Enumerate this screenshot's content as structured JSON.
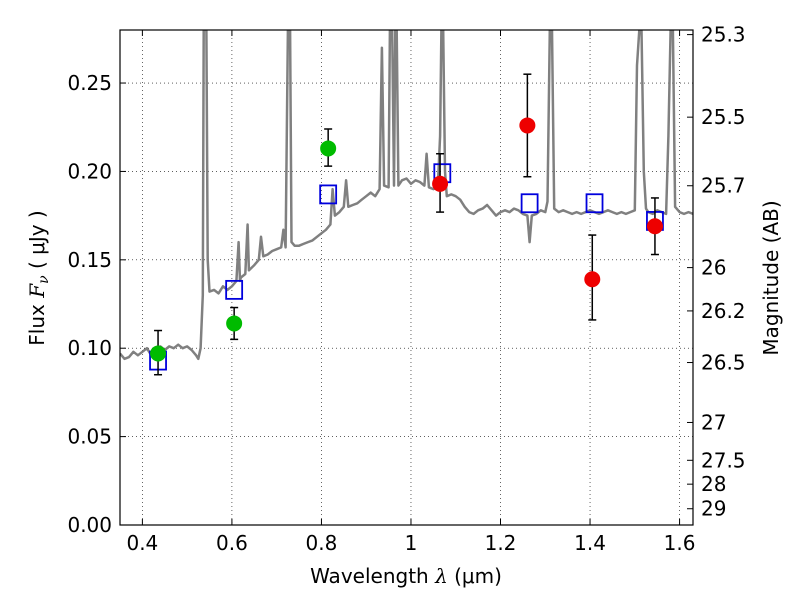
{
  "chart_data": {
    "type": "scatter",
    "xlabel_text": "Wavelength  ",
    "xlabel_symbol": "λ",
    "xlabel_unit": " (μm)",
    "ylabel_text": "Flux  ",
    "ylabel_symbol": "F",
    "ylabel_sub": "ν",
    "ylabel_unit": "  ( μJy )",
    "y2label": "Magnitude (AB)",
    "xlim": [
      0.35,
      1.63
    ],
    "ylim": [
      0.0,
      0.28
    ],
    "xticks": [
      0.4,
      0.6,
      0.8,
      1.0,
      1.2,
      1.4,
      1.6
    ],
    "xtick_labels": [
      "0.4",
      "0.6",
      "0.8",
      "1",
      "1.2",
      "1.4",
      "1.6"
    ],
    "yticks": [
      0.0,
      0.05,
      0.1,
      0.15,
      0.2,
      0.25
    ],
    "ytick_labels": [
      "0.00",
      "0.05",
      "0.10",
      "0.15",
      "0.20",
      "0.25"
    ],
    "y2ticks": [
      {
        "label": "25.3",
        "flux": 0.2774
      },
      {
        "label": "25.5",
        "flux": 0.2307
      },
      {
        "label": "25.7",
        "flux": 0.1919
      },
      {
        "label": "26",
        "flux": 0.1456
      },
      {
        "label": "26.2",
        "flux": 0.1211
      },
      {
        "label": "26.5",
        "flux": 0.0919
      },
      {
        "label": "27",
        "flux": 0.058
      },
      {
        "label": "27.5",
        "flux": 0.0366
      },
      {
        "label": "28",
        "flux": 0.0231
      },
      {
        "label": "29",
        "flux": 0.0092
      }
    ],
    "grid": true,
    "series": [
      {
        "kind": "spectrum",
        "color": "#808080",
        "points": [
          [
            0.35,
            0.097
          ],
          [
            0.36,
            0.094
          ],
          [
            0.37,
            0.095
          ],
          [
            0.38,
            0.098
          ],
          [
            0.39,
            0.096
          ],
          [
            0.4,
            0.098
          ],
          [
            0.41,
            0.1
          ],
          [
            0.42,
            0.096
          ],
          [
            0.43,
            0.099
          ],
          [
            0.44,
            0.101
          ],
          [
            0.45,
            0.099
          ],
          [
            0.46,
            0.101
          ],
          [
            0.47,
            0.1
          ],
          [
            0.48,
            0.102
          ],
          [
            0.49,
            0.1
          ],
          [
            0.5,
            0.101
          ],
          [
            0.51,
            0.099
          ],
          [
            0.52,
            0.096
          ],
          [
            0.525,
            0.094
          ],
          [
            0.53,
            0.1
          ],
          [
            0.535,
            0.13
          ],
          [
            0.537,
            0.28
          ],
          [
            0.543,
            0.28
          ],
          [
            0.546,
            0.15
          ],
          [
            0.55,
            0.132
          ],
          [
            0.56,
            0.133
          ],
          [
            0.57,
            0.131
          ],
          [
            0.58,
            0.135
          ],
          [
            0.59,
            0.133
          ],
          [
            0.6,
            0.135
          ],
          [
            0.61,
            0.138
          ],
          [
            0.615,
            0.16
          ],
          [
            0.618,
            0.138
          ],
          [
            0.62,
            0.14
          ],
          [
            0.63,
            0.142
          ],
          [
            0.635,
            0.17
          ],
          [
            0.638,
            0.144
          ],
          [
            0.65,
            0.147
          ],
          [
            0.66,
            0.15
          ],
          [
            0.665,
            0.163
          ],
          [
            0.67,
            0.152
          ],
          [
            0.68,
            0.153
          ],
          [
            0.69,
            0.155
          ],
          [
            0.7,
            0.156
          ],
          [
            0.71,
            0.157
          ],
          [
            0.715,
            0.167
          ],
          [
            0.72,
            0.157
          ],
          [
            0.725,
            0.28
          ],
          [
            0.73,
            0.28
          ],
          [
            0.733,
            0.16
          ],
          [
            0.74,
            0.158
          ],
          [
            0.75,
            0.158
          ],
          [
            0.76,
            0.159
          ],
          [
            0.77,
            0.16
          ],
          [
            0.78,
            0.161
          ],
          [
            0.79,
            0.163
          ],
          [
            0.8,
            0.165
          ],
          [
            0.81,
            0.167
          ],
          [
            0.82,
            0.17
          ],
          [
            0.825,
            0.19
          ],
          [
            0.83,
            0.175
          ],
          [
            0.84,
            0.177
          ],
          [
            0.85,
            0.18
          ],
          [
            0.855,
            0.195
          ],
          [
            0.86,
            0.18
          ],
          [
            0.87,
            0.181
          ],
          [
            0.88,
            0.182
          ],
          [
            0.89,
            0.184
          ],
          [
            0.9,
            0.186
          ],
          [
            0.91,
            0.188
          ],
          [
            0.92,
            0.186
          ],
          [
            0.93,
            0.19
          ],
          [
            0.935,
            0.27
          ],
          [
            0.94,
            0.192
          ],
          [
            0.95,
            0.191
          ],
          [
            0.953,
            0.28
          ],
          [
            0.958,
            0.28
          ],
          [
            0.962,
            0.192
          ],
          [
            0.965,
            0.28
          ],
          [
            0.968,
            0.28
          ],
          [
            0.972,
            0.192
          ],
          [
            0.98,
            0.195
          ],
          [
            0.99,
            0.196
          ],
          [
            1.0,
            0.193
          ],
          [
            1.01,
            0.195
          ],
          [
            1.02,
            0.194
          ],
          [
            1.03,
            0.192
          ],
          [
            1.035,
            0.21
          ],
          [
            1.04,
            0.191
          ],
          [
            1.05,
            0.19
          ],
          [
            1.06,
            0.191
          ],
          [
            1.065,
            0.22
          ],
          [
            1.068,
            0.28
          ],
          [
            1.072,
            0.28
          ],
          [
            1.076,
            0.2
          ],
          [
            1.08,
            0.186
          ],
          [
            1.09,
            0.187
          ],
          [
            1.1,
            0.186
          ],
          [
            1.11,
            0.184
          ],
          [
            1.12,
            0.18
          ],
          [
            1.13,
            0.177
          ],
          [
            1.14,
            0.176
          ],
          [
            1.15,
            0.178
          ],
          [
            1.16,
            0.179
          ],
          [
            1.17,
            0.181
          ],
          [
            1.18,
            0.178
          ],
          [
            1.19,
            0.175
          ],
          [
            1.2,
            0.177
          ],
          [
            1.21,
            0.178
          ],
          [
            1.22,
            0.177
          ],
          [
            1.23,
            0.179
          ],
          [
            1.24,
            0.178
          ],
          [
            1.25,
            0.176
          ],
          [
            1.26,
            0.175
          ],
          [
            1.265,
            0.16
          ],
          [
            1.27,
            0.175
          ],
          [
            1.28,
            0.176
          ],
          [
            1.29,
            0.178
          ],
          [
            1.3,
            0.177
          ],
          [
            1.305,
            0.183
          ],
          [
            1.31,
            0.28
          ],
          [
            1.315,
            0.28
          ],
          [
            1.32,
            0.179
          ],
          [
            1.33,
            0.177
          ],
          [
            1.34,
            0.178
          ],
          [
            1.35,
            0.177
          ],
          [
            1.36,
            0.176
          ],
          [
            1.37,
            0.177
          ],
          [
            1.38,
            0.176
          ],
          [
            1.39,
            0.177
          ],
          [
            1.4,
            0.178
          ],
          [
            1.41,
            0.177
          ],
          [
            1.42,
            0.176
          ],
          [
            1.43,
            0.177
          ],
          [
            1.44,
            0.178
          ],
          [
            1.45,
            0.177
          ],
          [
            1.46,
            0.176
          ],
          [
            1.47,
            0.177
          ],
          [
            1.48,
            0.176
          ],
          [
            1.49,
            0.177
          ],
          [
            1.5,
            0.178
          ],
          [
            1.505,
            0.26
          ],
          [
            1.51,
            0.28
          ],
          [
            1.515,
            0.28
          ],
          [
            1.52,
            0.2
          ],
          [
            1.525,
            0.179
          ],
          [
            1.53,
            0.177
          ],
          [
            1.54,
            0.176
          ],
          [
            1.55,
            0.178
          ],
          [
            1.56,
            0.177
          ],
          [
            1.57,
            0.176
          ],
          [
            1.575,
            0.22
          ],
          [
            1.58,
            0.28
          ],
          [
            1.585,
            0.28
          ],
          [
            1.59,
            0.18
          ],
          [
            1.6,
            0.177
          ],
          [
            1.61,
            0.176
          ],
          [
            1.62,
            0.177
          ],
          [
            1.63,
            0.176
          ]
        ]
      },
      {
        "kind": "model-photometry",
        "marker": "open-square",
        "color": "#0000dd",
        "x": [
          0.435,
          0.605,
          0.815,
          1.07,
          1.265,
          1.41,
          1.545
        ],
        "y": [
          0.093,
          0.133,
          0.187,
          0.199,
          0.182,
          0.182,
          0.172
        ]
      },
      {
        "kind": "observed-green",
        "marker": "filled-circle",
        "color": "#00bb00",
        "x": [
          0.435,
          0.605,
          0.815
        ],
        "y": [
          0.097,
          0.114,
          0.213
        ],
        "yerr_low": [
          0.085,
          0.105,
          0.203
        ],
        "yerr_high": [
          0.11,
          0.123,
          0.224
        ]
      },
      {
        "kind": "observed-red",
        "marker": "filled-circle",
        "color": "#ee0000",
        "x": [
          1.065,
          1.26,
          1.405,
          1.545
        ],
        "y": [
          0.193,
          0.226,
          0.139,
          0.169
        ],
        "yerr_low": [
          0.177,
          0.197,
          0.116,
          0.153
        ],
        "yerr_high": [
          0.21,
          0.255,
          0.164,
          0.185
        ]
      }
    ]
  }
}
